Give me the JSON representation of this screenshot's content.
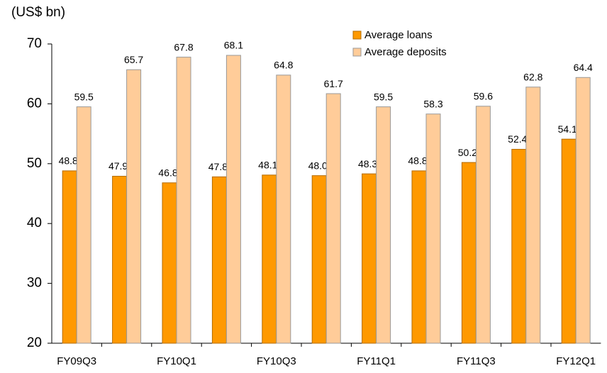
{
  "chart_data": {
    "type": "bar",
    "y_axis_label": "(US$ bn)",
    "categories": [
      "FY09Q3",
      null,
      "FY10Q1",
      null,
      "FY10Q3",
      null,
      "FY11Q1",
      null,
      "FY11Q3",
      null,
      "FY12Q1"
    ],
    "series": [
      {
        "name": "Average loans",
        "color": "#ff9900",
        "values": [
          48.8,
          47.9,
          46.8,
          47.8,
          48.1,
          48.0,
          48.3,
          48.8,
          50.2,
          52.4,
          54.1
        ],
        "value_labels": [
          "48.8",
          "47.9",
          "46.8",
          "47.8",
          "48.1",
          "48.0",
          "48.3",
          "48.8",
          "50.2",
          "52.4",
          "54.1"
        ]
      },
      {
        "name": "Average deposits",
        "color": "#ffcc99",
        "values": [
          59.5,
          65.7,
          67.8,
          68.1,
          64.8,
          61.7,
          59.5,
          58.3,
          59.6,
          62.8,
          64.4
        ],
        "value_labels": [
          "59.5",
          "65.7",
          "67.8",
          "68.1",
          "64.8",
          "61.7",
          "59.5",
          "58.3",
          "59.6",
          "62.8",
          "64.4"
        ]
      }
    ],
    "ylim": [
      20,
      70
    ],
    "yticks": [
      20,
      30,
      40,
      50,
      60,
      70
    ],
    "legend": "top-right"
  }
}
